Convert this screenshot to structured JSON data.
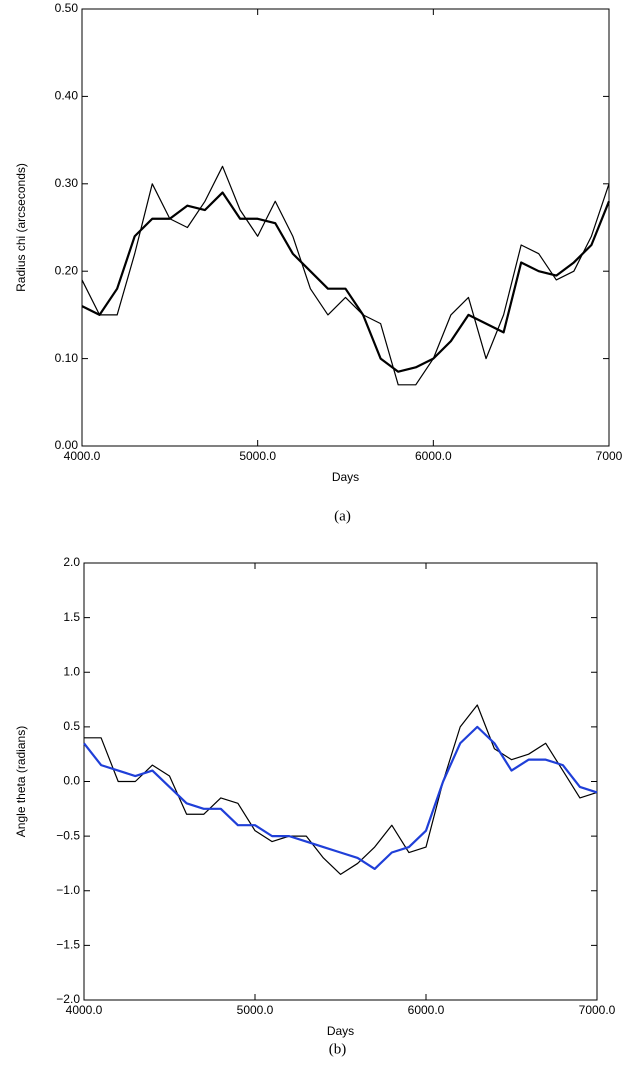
{
  "chart_data": [
    {
      "type": "line",
      "caption": "(a)",
      "x_label": "Days",
      "y_label": "Radius chi (arcseconds)",
      "xlim": [
        4000,
        7000
      ],
      "xticks": [
        {
          "value": 4000,
          "label": "4000.0"
        },
        {
          "value": 5000,
          "label": "5000.0"
        },
        {
          "value": 6000,
          "label": "6000.0"
        },
        {
          "value": 7000,
          "label": "7000"
        }
      ],
      "ylim": [
        0,
        0.5
      ],
      "yticks": [
        {
          "value": 0,
          "label": "0.00"
        },
        {
          "value": 0.1,
          "label": "0.10"
        },
        {
          "value": 0.2,
          "label": "0.20"
        },
        {
          "value": 0.3,
          "label": "0.30"
        },
        {
          "value": 0.4,
          "label": "0.40"
        },
        {
          "value": 0.5,
          "label": "0.50"
        }
      ],
      "x": [
        4000,
        4100,
        4200,
        4300,
        4400,
        4500,
        4600,
        4700,
        4800,
        4900,
        5000,
        5100,
        5200,
        5300,
        5400,
        5500,
        5600,
        5700,
        5800,
        5900,
        6000,
        6100,
        6200,
        6300,
        6400,
        6500,
        6600,
        6700,
        6800,
        6900,
        7000
      ],
      "series": [
        {
          "color": "#000000",
          "line_width": 2.2,
          "values": [
            0.16,
            0.15,
            0.18,
            0.24,
            0.26,
            0.26,
            0.275,
            0.27,
            0.29,
            0.26,
            0.26,
            0.255,
            0.22,
            0.2,
            0.18,
            0.18,
            0.15,
            0.1,
            0.085,
            0.09,
            0.1,
            0.12,
            0.15,
            0.14,
            0.13,
            0.21,
            0.2,
            0.195,
            0.21,
            0.23,
            0.28
          ]
        },
        {
          "color": "#000000",
          "line_width": 1.2,
          "values": [
            0.19,
            0.15,
            0.15,
            0.22,
            0.3,
            0.26,
            0.25,
            0.28,
            0.32,
            0.27,
            0.24,
            0.28,
            0.24,
            0.18,
            0.15,
            0.17,
            0.15,
            0.14,
            0.07,
            0.07,
            0.1,
            0.15,
            0.17,
            0.1,
            0.15,
            0.23,
            0.22,
            0.19,
            0.2,
            0.24,
            0.3
          ]
        }
      ]
    },
    {
      "type": "line",
      "caption": "(b)",
      "x_label": "Days",
      "y_label": "Angle theta (radians)",
      "xlim": [
        4000,
        7000
      ],
      "xticks": [
        {
          "value": 4000,
          "label": "4000.0"
        },
        {
          "value": 5000,
          "label": "5000.0"
        },
        {
          "value": 6000,
          "label": "6000.0"
        },
        {
          "value": 7000,
          "label": "7000.0"
        }
      ],
      "ylim": [
        -2,
        2
      ],
      "yticks": [
        {
          "value": -2,
          "label": "−2.0"
        },
        {
          "value": -1.5,
          "label": "−1.5"
        },
        {
          "value": -1,
          "label": "−1.0"
        },
        {
          "value": -0.5,
          "label": "−0.5"
        },
        {
          "value": 0,
          "label": "0.0"
        },
        {
          "value": 0.5,
          "label": "0.5"
        },
        {
          "value": 1,
          "label": "1.0"
        },
        {
          "value": 1.5,
          "label": "1.5"
        },
        {
          "value": 2,
          "label": "2.0"
        }
      ],
      "x": [
        4000,
        4100,
        4200,
        4300,
        4400,
        4500,
        4600,
        4700,
        4800,
        4900,
        5000,
        5100,
        5200,
        5300,
        5400,
        5500,
        5600,
        5700,
        5800,
        5900,
        6000,
        6100,
        6200,
        6300,
        6400,
        6500,
        6600,
        6700,
        6800,
        6900,
        7000
      ],
      "series": [
        {
          "color": "#000000",
          "line_width": 1.2,
          "values": [
            0.4,
            0.4,
            0,
            0,
            0.15,
            0.05,
            -0.3,
            -0.3,
            -0.15,
            -0.2,
            -0.45,
            -0.55,
            -0.5,
            -0.5,
            -0.7,
            -0.85,
            -0.75,
            -0.6,
            -0.4,
            -0.65,
            -0.6,
            0,
            0.5,
            0.7,
            0.3,
            0.2,
            0.25,
            0.35,
            0.1,
            -0.15,
            -0.1
          ]
        },
        {
          "color": "#1f3fd8",
          "line_width": 2.2,
          "values": [
            0.35,
            0.15,
            0.1,
            0.05,
            0.1,
            -0.05,
            -0.2,
            -0.25,
            -0.25,
            -0.4,
            -0.4,
            -0.5,
            -0.5,
            -0.55,
            -0.6,
            -0.65,
            -0.7,
            -0.8,
            -0.65,
            -0.6,
            -0.45,
            0,
            0.35,
            0.5,
            0.35,
            0.1,
            0.2,
            0.2,
            0.15,
            -0.05,
            -0.1
          ]
        }
      ]
    }
  ]
}
